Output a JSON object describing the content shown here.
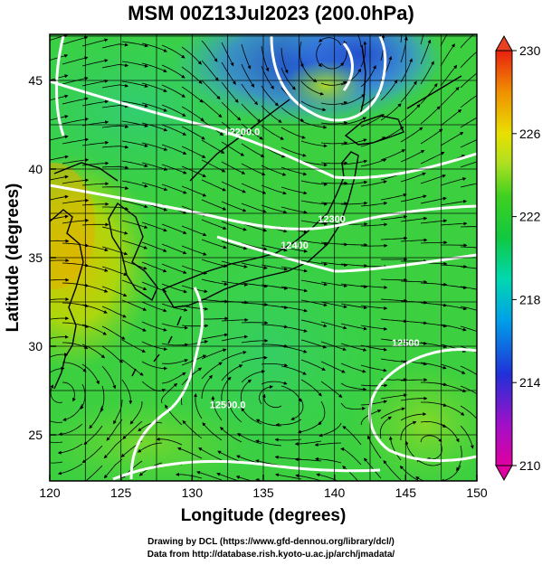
{
  "title": "MSM 00Z13Jul2023 (200.0hPa)",
  "axes": {
    "xlabel": "Longitude (degrees)",
    "ylabel": "Latitude  (degrees)",
    "xticks": [
      120,
      125,
      130,
      135,
      140,
      145,
      150
    ],
    "yticks": [
      25,
      30,
      35,
      40,
      45
    ],
    "xlim": [
      120,
      150
    ],
    "ylim": [
      22.4,
      47.6
    ]
  },
  "colorbar": {
    "min": 210,
    "max": 230,
    "ticks": [
      230,
      226,
      222,
      218,
      214,
      210
    ],
    "colors": [
      "#dd0077",
      "#b000c8",
      "#2030d8",
      "#00a0e8",
      "#00d8b0",
      "#00c850",
      "#20d020",
      "#a0e020",
      "#e8e000",
      "#f09000",
      "#e83010"
    ]
  },
  "contour_labels": [
    {
      "text": "12200.0",
      "lon": 133.5,
      "lat": 41.9
    },
    {
      "text": "12300",
      "lon": 139.8,
      "lat": 37.0
    },
    {
      "text": "12400",
      "lon": 137.2,
      "lat": 35.5
    },
    {
      "text": "12500.0",
      "lon": 132.5,
      "lat": 26.5
    },
    {
      "text": "12500",
      "lon": 145.0,
      "lat": 30.0
    }
  ],
  "credits": {
    "line1": "Drawing by DCL (https://www.gfd-dennou.org/library/dcl/)",
    "line2": "Data from http://database.rish.kyoto-u.ac.jp/arch/jmadata/"
  }
}
